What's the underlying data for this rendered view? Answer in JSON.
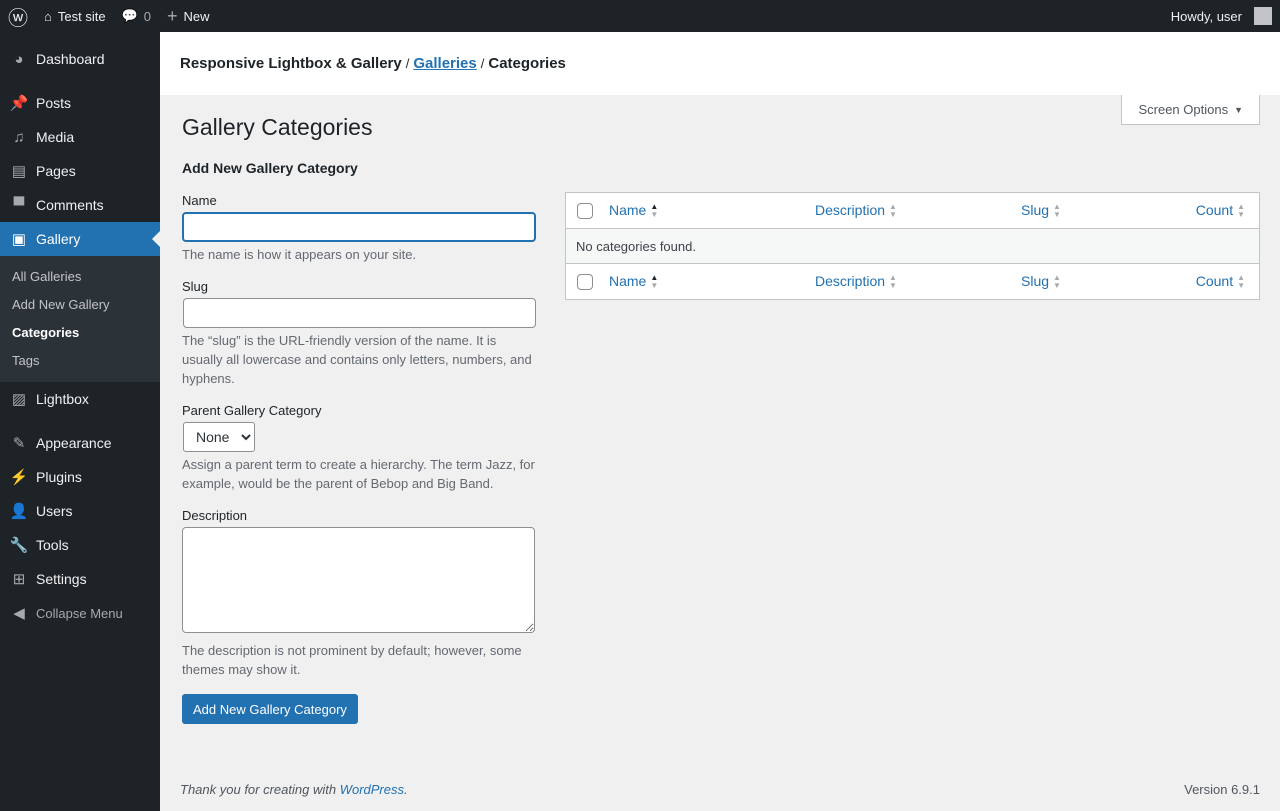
{
  "adminbar": {
    "site": "Test site",
    "comments": "0",
    "new": "New",
    "howdy": "Howdy, user"
  },
  "sidebar": {
    "items": [
      "Dashboard",
      "Posts",
      "Media",
      "Pages",
      "Comments",
      "Gallery",
      "Lightbox",
      "Appearance",
      "Plugins",
      "Users",
      "Tools",
      "Settings",
      "Collapse Menu"
    ],
    "submenu": [
      "All Galleries",
      "Add New Gallery",
      "Categories",
      "Tags"
    ]
  },
  "header": {
    "plugin": "Responsive Lightbox & Gallery",
    "galleries": "Galleries",
    "current": "Categories"
  },
  "screen_options": "Screen Options",
  "page_title": "Gallery Categories",
  "form": {
    "heading": "Add New Gallery Category",
    "name_label": "Name",
    "name_value": "",
    "name_help": "The name is how it appears on your site.",
    "slug_label": "Slug",
    "slug_value": "",
    "slug_help": "The “slug” is the URL-friendly version of the name. It is usually all lowercase and contains only letters, numbers, and hyphens.",
    "parent_label": "Parent Gallery Category",
    "parent_value": "None",
    "parent_help": "Assign a parent term to create a hierarchy. The term Jazz, for example, would be the parent of Bebop and Big Band.",
    "desc_label": "Description",
    "desc_value": "",
    "desc_help": "The description is not prominent by default; however, some themes may show it.",
    "submit": "Add New Gallery Category"
  },
  "table": {
    "columns": [
      "Name",
      "Description",
      "Slug",
      "Count"
    ],
    "empty": "No categories found."
  },
  "footer": {
    "thanks": "Thank you for creating with ",
    "link": "WordPress",
    "period": ".",
    "version": "Version 6.9.1"
  },
  "colors": {
    "accent": "#2271b1",
    "sidebar": "#1d2327"
  }
}
